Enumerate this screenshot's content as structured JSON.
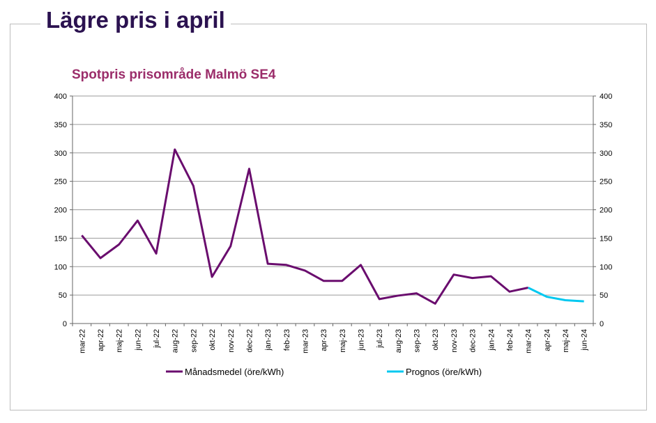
{
  "heading": "Lägre pris i april",
  "chart_data": {
    "type": "line",
    "title": "Spotpris prisområde Malmö SE4",
    "categories": [
      "mar-22",
      "apr-22",
      "maj-22",
      "jun-22",
      "jul-22",
      "aug-22",
      "sep-22",
      "okt-22",
      "nov-22",
      "dec-22",
      "jan-23",
      "feb-23",
      "mar-23",
      "apr-23",
      "maj-23",
      "jun-23",
      "jul-23",
      "aug-23",
      "sep-23",
      "okt-23",
      "nov-23",
      "dec-23",
      "jan-24",
      "feb-24",
      "mar-24",
      "apr-24",
      "maj-24",
      "jun-24"
    ],
    "series": [
      {
        "name": "Månadsmedel (öre/kWh)",
        "color": "#6a0d6e",
        "values": [
          155,
          115,
          139,
          181,
          123,
          306,
          242,
          82,
          136,
          272,
          105,
          103,
          93,
          75,
          75,
          103,
          43,
          49,
          53,
          35,
          86,
          80,
          83,
          56,
          63,
          null,
          null,
          null
        ]
      },
      {
        "name": "Prognos (öre/kWh)",
        "color": "#00c8f0",
        "values": [
          null,
          null,
          null,
          null,
          null,
          null,
          null,
          null,
          null,
          null,
          null,
          null,
          null,
          null,
          null,
          null,
          null,
          null,
          null,
          null,
          null,
          null,
          null,
          null,
          63,
          47,
          41,
          39
        ]
      }
    ],
    "ylim": [
      0,
      400
    ],
    "yticks": [
      0,
      50,
      100,
      150,
      200,
      250,
      300,
      350,
      400
    ],
    "grid": true,
    "secondary_axis": true,
    "legend": "bottom"
  }
}
